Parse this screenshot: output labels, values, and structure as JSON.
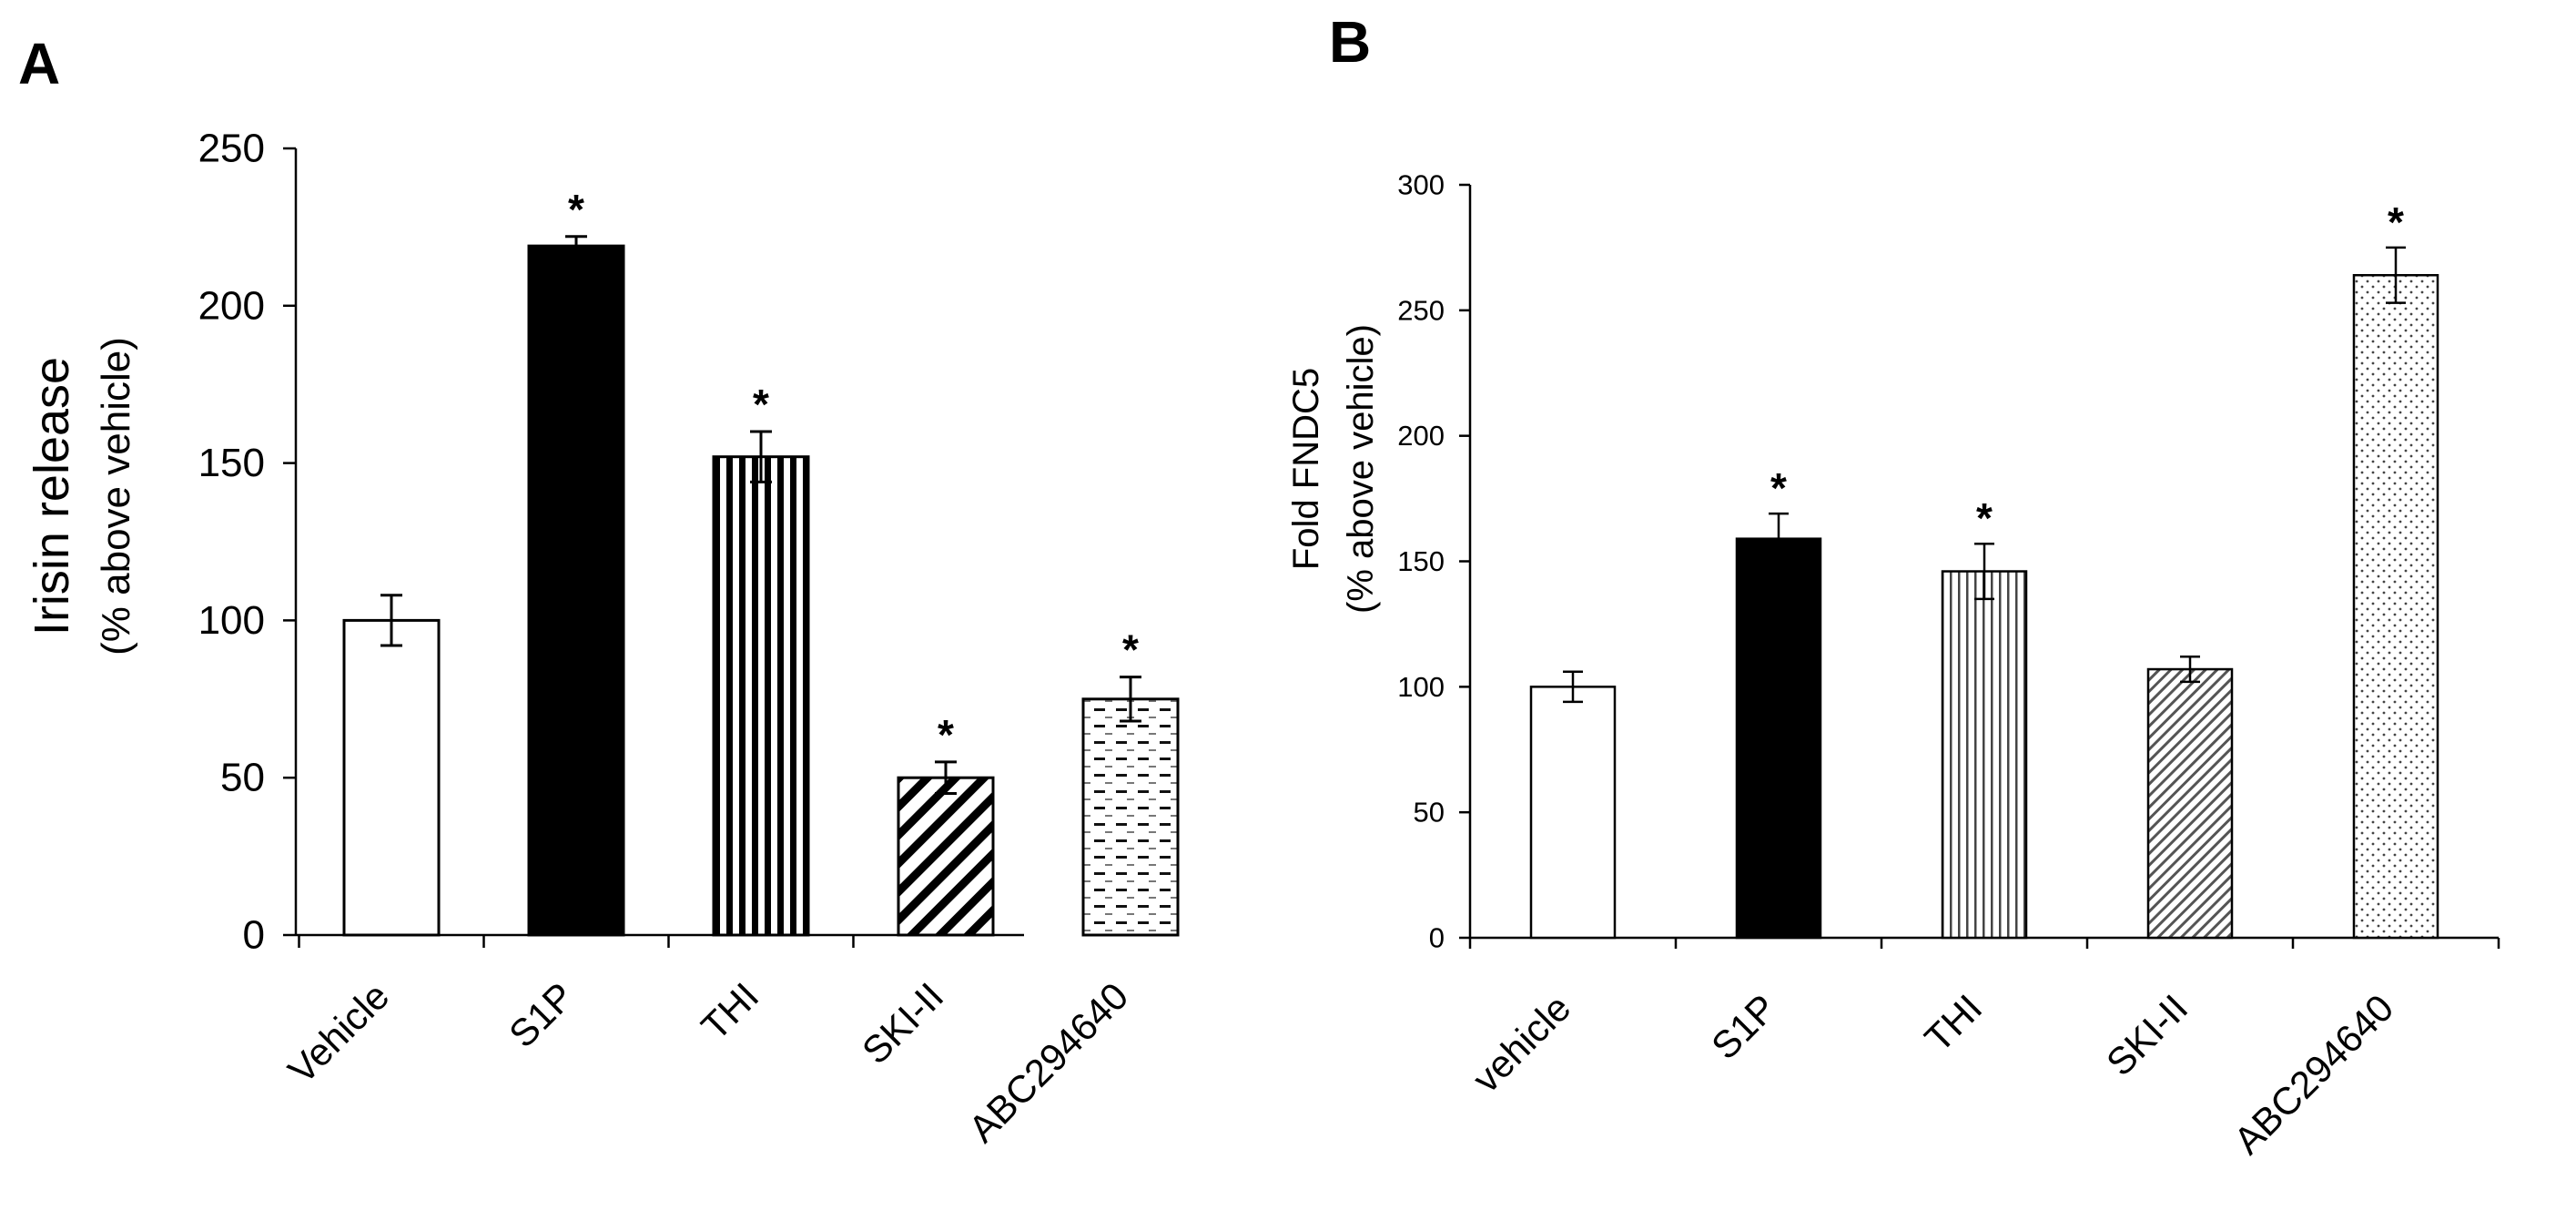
{
  "chart_data": [
    {
      "panel": "A",
      "type": "bar",
      "title": "",
      "ylabel": "Irisin release",
      "ylabel_sub": "(% above vehicle)",
      "xlabel": "",
      "ylim": [
        0,
        250
      ],
      "yticks": [
        0,
        50,
        100,
        150,
        200,
        250
      ],
      "categories": [
        "Vehicle",
        "S1P",
        "THI",
        "SKI-II",
        "ABC294640"
      ],
      "values": [
        100,
        219,
        152,
        50,
        75
      ],
      "errors": [
        8,
        3,
        8,
        5,
        7
      ],
      "significant": [
        false,
        true,
        true,
        true,
        true
      ],
      "significance_marker": "*",
      "patterns": [
        "white",
        "black",
        "vertical-lines",
        "diagonal-lines",
        "dashes"
      ]
    },
    {
      "panel": "B",
      "type": "bar",
      "title": "",
      "ylabel": "Fold FNDC5",
      "ylabel_sub": "(% above vehicle)",
      "xlabel": "",
      "ylim": [
        0,
        300
      ],
      "yticks": [
        0,
        50,
        100,
        150,
        200,
        250,
        300
      ],
      "categories": [
        "vehicle",
        "S1P",
        "THI",
        "SKI-II",
        "ABC294640"
      ],
      "values": [
        100,
        159,
        146,
        107,
        264
      ],
      "errors": [
        6,
        10,
        11,
        5,
        11
      ],
      "significant": [
        false,
        true,
        true,
        false,
        true
      ],
      "significance_marker": "*",
      "patterns": [
        "white",
        "black",
        "vertical-lines-fine",
        "diagonal-lines-fine",
        "dots"
      ]
    }
  ]
}
